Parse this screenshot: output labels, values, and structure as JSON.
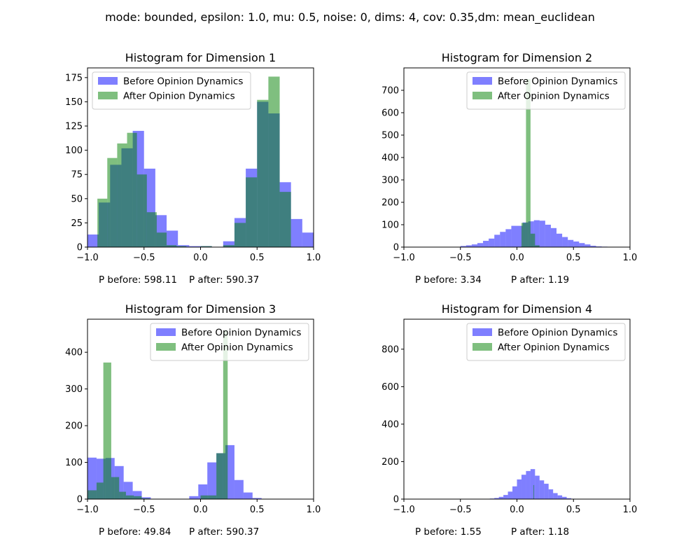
{
  "suptitle": "mode: bounded, epsilon: 1.0, mu: 0.5, noise: 0, dims: 4, cov: 0.35,dm: mean_euclidean",
  "colors": {
    "before": "#0000ff",
    "after": "#008000",
    "alpha": 0.5
  },
  "chart_data": [
    {
      "type": "bar",
      "title": "Histogram for Dimension 1",
      "xlim": [
        -1.0,
        1.0
      ],
      "ylim": [
        0,
        185
      ],
      "xticks": [
        -1.0,
        -0.5,
        0.0,
        0.5,
        1.0
      ],
      "xtick_labels": [
        "−1.0",
        "−0.5",
        "0.0",
        "0.5",
        "1.0"
      ],
      "yticks": [
        0,
        25,
        50,
        75,
        100,
        125,
        150,
        175
      ],
      "legend_loc": "upper-left",
      "p_before": "P before: 598.11",
      "p_after": "P after: 590.37",
      "series": [
        {
          "name": "Before Opinion Dynamics",
          "bins": [
            [
              -1.0,
              -0.9,
              13
            ],
            [
              -0.9,
              -0.8,
              46
            ],
            [
              -0.8,
              -0.7,
              85
            ],
            [
              -0.7,
              -0.6,
              102
            ],
            [
              -0.6,
              -0.5,
              120
            ],
            [
              -0.5,
              -0.4,
              81
            ],
            [
              -0.4,
              -0.3,
              33
            ],
            [
              -0.3,
              -0.2,
              17
            ],
            [
              -0.2,
              -0.1,
              2
            ],
            [
              -0.1,
              0.0,
              1
            ],
            [
              0.0,
              0.1,
              1
            ],
            [
              0.2,
              0.3,
              6
            ],
            [
              0.3,
              0.4,
              30
            ],
            [
              0.4,
              0.5,
              81
            ],
            [
              0.5,
              0.6,
              150
            ],
            [
              0.6,
              0.7,
              138
            ],
            [
              0.7,
              0.8,
              67
            ],
            [
              0.8,
              0.9,
              29
            ],
            [
              0.9,
              1.0,
              15
            ]
          ]
        },
        {
          "name": "After Opinion Dynamics",
          "bins": [
            [
              -0.9125,
              -0.825,
              50
            ],
            [
              -0.825,
              -0.7375,
              92
            ],
            [
              -0.7375,
              -0.65,
              107
            ],
            [
              -0.65,
              -0.5625,
              118
            ],
            [
              -0.5625,
              -0.475,
              75
            ],
            [
              -0.475,
              -0.3875,
              36
            ],
            [
              -0.3875,
              -0.3,
              15
            ],
            [
              -0.3,
              -0.2125,
              2
            ],
            [
              -0.2125,
              -0.125,
              1
            ],
            [
              0.0,
              0.1,
              1
            ],
            [
              0.2,
              0.3,
              2
            ],
            [
              0.3,
              0.4,
              25
            ],
            [
              0.4,
              0.5,
              72
            ],
            [
              0.5,
              0.6,
              152
            ],
            [
              0.6,
              0.7,
              176
            ],
            [
              0.7,
              0.8,
              57
            ]
          ]
        }
      ]
    },
    {
      "type": "bar",
      "title": "Histogram for Dimension 2",
      "xlim": [
        -1.0,
        1.0
      ],
      "ylim": [
        0,
        800
      ],
      "xticks": [
        -1.0,
        -0.5,
        0.0,
        0.5,
        1.0
      ],
      "xtick_labels": [
        "−1.0",
        "−0.5",
        "0.0",
        "0.5",
        "1.0"
      ],
      "yticks": [
        0,
        100,
        200,
        300,
        400,
        500,
        600,
        700
      ],
      "legend_loc": "upper-right",
      "p_before": "P before: 3.34",
      "p_after": "P after: 1.19",
      "series": [
        {
          "name": "Before Opinion Dynamics",
          "bins": [
            [
              -0.55,
              -0.5,
              1
            ],
            [
              -0.5,
              -0.45,
              5
            ],
            [
              -0.45,
              -0.4,
              8
            ],
            [
              -0.4,
              -0.35,
              12
            ],
            [
              -0.35,
              -0.3,
              18
            ],
            [
              -0.3,
              -0.25,
              28
            ],
            [
              -0.25,
              -0.2,
              38
            ],
            [
              -0.2,
              -0.15,
              55
            ],
            [
              -0.15,
              -0.1,
              68
            ],
            [
              -0.1,
              -0.05,
              80
            ],
            [
              -0.05,
              0.0,
              95
            ],
            [
              0.0,
              0.05,
              95
            ],
            [
              0.05,
              0.1,
              110
            ],
            [
              0.1,
              0.15,
              115
            ],
            [
              0.15,
              0.2,
              120
            ],
            [
              0.2,
              0.25,
              118
            ],
            [
              0.25,
              0.3,
              100
            ],
            [
              0.3,
              0.35,
              85
            ],
            [
              0.35,
              0.4,
              60
            ],
            [
              0.4,
              0.45,
              45
            ],
            [
              0.45,
              0.5,
              32
            ],
            [
              0.5,
              0.55,
              25
            ],
            [
              0.55,
              0.6,
              18
            ],
            [
              0.6,
              0.65,
              12
            ],
            [
              0.65,
              0.7,
              6
            ],
            [
              0.7,
              0.75,
              3
            ],
            [
              0.75,
              0.8,
              2
            ],
            [
              0.8,
              0.85,
              1
            ]
          ]
        },
        {
          "name": "After Opinion Dynamics",
          "bins": [
            [
              0.04,
              0.08,
              108
            ],
            [
              0.08,
              0.12,
              750
            ],
            [
              0.12,
              0.16,
              60
            ],
            [
              0.16,
              0.2,
              8
            ]
          ]
        }
      ]
    },
    {
      "type": "bar",
      "title": "Histogram for Dimension 3",
      "xlim": [
        -1.0,
        1.0
      ],
      "ylim": [
        0,
        490
      ],
      "xticks": [
        -1.0,
        -0.5,
        0.0,
        0.5,
        1.0
      ],
      "xtick_labels": [
        "−1.0",
        "−0.5",
        "0.0",
        "0.5",
        "1.0"
      ],
      "yticks": [
        0,
        100,
        200,
        300,
        400
      ],
      "legend_loc": "upper-right",
      "p_before": "P before: 49.84",
      "p_after": "P after: 590.37",
      "series": [
        {
          "name": "Before Opinion Dynamics",
          "bins": [
            [
              -1.0,
              -0.92,
              113
            ],
            [
              -0.92,
              -0.84,
              110
            ],
            [
              -0.84,
              -0.76,
              112
            ],
            [
              -0.76,
              -0.68,
              90
            ],
            [
              -0.68,
              -0.6,
              47
            ],
            [
              -0.6,
              -0.52,
              22
            ],
            [
              -0.52,
              -0.44,
              5
            ],
            [
              -0.44,
              -0.36,
              1
            ],
            [
              -0.1,
              -0.02,
              8
            ],
            [
              -0.02,
              0.06,
              40
            ],
            [
              0.06,
              0.14,
              100
            ],
            [
              0.14,
              0.22,
              125
            ],
            [
              0.22,
              0.3,
              147
            ],
            [
              0.3,
              0.38,
              52
            ],
            [
              0.38,
              0.46,
              18
            ],
            [
              0.46,
              0.54,
              3
            ]
          ]
        },
        {
          "name": "After Opinion Dynamics",
          "bins": [
            [
              -1.0,
              -0.92,
              24
            ],
            [
              -0.92,
              -0.86,
              45
            ],
            [
              -0.86,
              -0.79,
              372
            ],
            [
              -0.79,
              -0.72,
              60
            ],
            [
              -0.72,
              -0.66,
              20
            ],
            [
              -0.66,
              -0.59,
              10
            ],
            [
              -0.59,
              -0.52,
              8
            ],
            [
              -0.52,
              -0.45,
              2
            ],
            [
              0.0,
              0.07,
              10
            ],
            [
              0.07,
              0.14,
              10
            ],
            [
              0.14,
              0.2,
              125
            ],
            [
              0.2,
              0.24,
              460
            ]
          ]
        }
      ]
    },
    {
      "type": "bar",
      "title": "Histogram for Dimension 4",
      "xlim": [
        -1.0,
        1.0
      ],
      "ylim": [
        0,
        960
      ],
      "xticks": [
        -1.0,
        -0.5,
        0.0,
        0.5,
        1.0
      ],
      "xtick_labels": [
        "−1.0",
        "−0.5",
        "0.0",
        "0.5",
        "1.0"
      ],
      "yticks": [
        0,
        200,
        400,
        600,
        800
      ],
      "legend_loc": "upper-right",
      "p_before": "P before: 1.55",
      "p_after": "P after: 1.18",
      "series": [
        {
          "name": "Before Opinion Dynamics",
          "bins": [
            [
              -0.24,
              -0.2,
              3
            ],
            [
              -0.2,
              -0.16,
              6
            ],
            [
              -0.16,
              -0.12,
              12
            ],
            [
              -0.12,
              -0.08,
              22
            ],
            [
              -0.08,
              -0.04,
              40
            ],
            [
              -0.04,
              0.0,
              68
            ],
            [
              0.0,
              0.04,
              105
            ],
            [
              0.04,
              0.08,
              130
            ],
            [
              0.08,
              0.12,
              150
            ],
            [
              0.12,
              0.16,
              160
            ],
            [
              0.16,
              0.2,
              125
            ],
            [
              0.2,
              0.24,
              100
            ],
            [
              0.24,
              0.28,
              82
            ],
            [
              0.28,
              0.32,
              52
            ],
            [
              0.32,
              0.36,
              32
            ],
            [
              0.36,
              0.4,
              20
            ],
            [
              0.4,
              0.44,
              12
            ],
            [
              0.44,
              0.48,
              5
            ],
            [
              0.48,
              0.52,
              2
            ]
          ]
        },
        {
          "name": "After Opinion Dynamics",
          "bins": [
            [
              0.146,
              0.152,
              75
            ]
          ]
        }
      ]
    }
  ]
}
